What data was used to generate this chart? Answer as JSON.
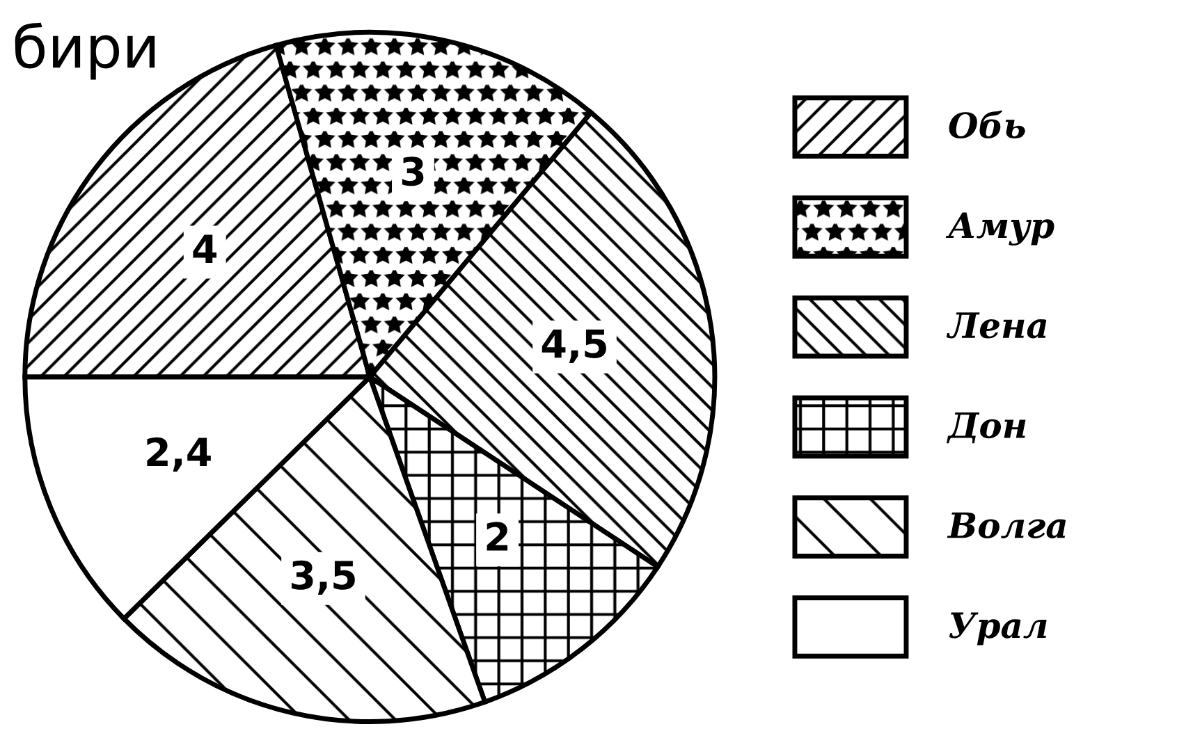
{
  "chart_data": {
    "type": "pie",
    "title": "бири",
    "categories": [
      "Обь",
      "Амур",
      "Лена",
      "Дон",
      "Волга",
      "Урал"
    ],
    "values": [
      4,
      3,
      4.5,
      2,
      3.5,
      2.4
    ],
    "value_labels": [
      "4",
      "3",
      "4,5",
      "2",
      "3,5",
      "2,4"
    ],
    "legend": "right"
  }
}
